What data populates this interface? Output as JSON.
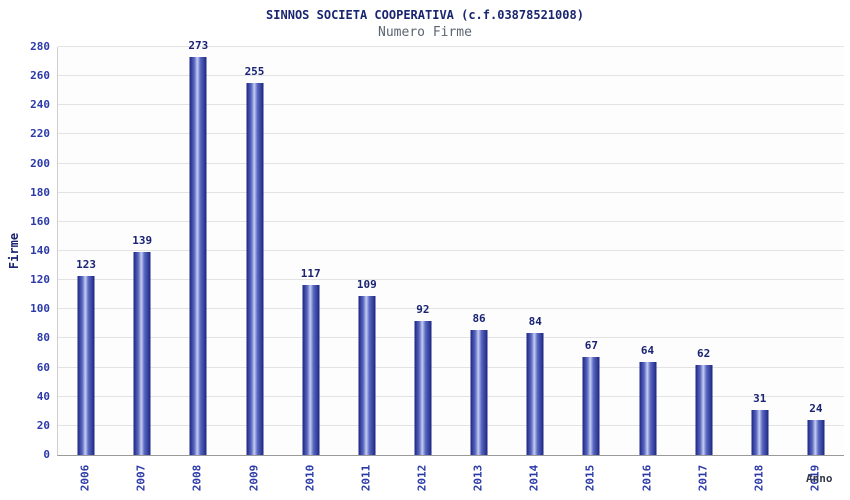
{
  "chart_data": {
    "type": "bar",
    "title": "SINNOS SOCIETA COOPERATIVA (c.f.03878521008)",
    "subtitle": "Numero Firme",
    "categories": [
      "2006",
      "2007",
      "2008",
      "2009",
      "2010",
      "2011",
      "2012",
      "2013",
      "2014",
      "2015",
      "2016",
      "2017",
      "2018",
      "2019"
    ],
    "values": [
      123,
      139,
      273,
      255,
      117,
      109,
      92,
      86,
      84,
      67,
      64,
      62,
      31,
      24
    ],
    "xlabel": "Anno",
    "ylabel": "Firme",
    "ylim": [
      0,
      280
    ],
    "ytick_step": 20,
    "grid": true,
    "legend": "none",
    "colors": {
      "bar_dark": "#1b2583",
      "bar_mid": "#5a68c0",
      "bar_light": "#c6cdf2",
      "axis_label_blue": "#2c3aa8",
      "title_navy": "#1a2570",
      "subtitle_gray": "#5c6670"
    }
  }
}
